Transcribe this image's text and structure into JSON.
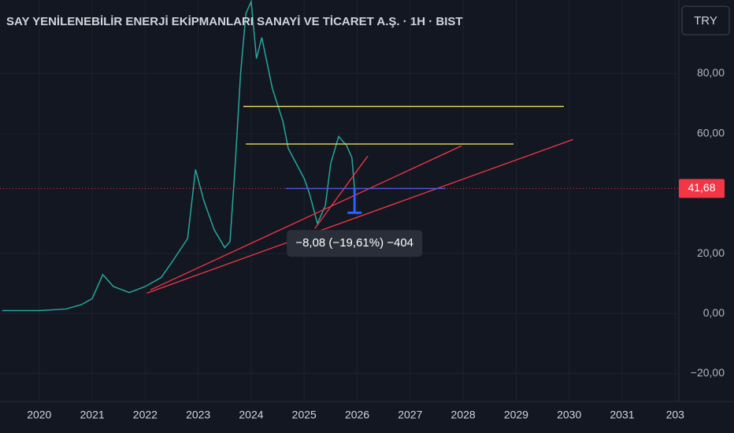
{
  "chart_data": {
    "type": "line",
    "title": "SAY YENİLENEBİLİR ENERJİ EKİPMANLARI SANAYİ VE TİCARET A.Ş. · 1H · BIST",
    "currency": "TRY",
    "color": "#26a69a",
    "x": [
      2019.3,
      2020,
      2020.5,
      2020.8,
      2021,
      2021.2,
      2021.4,
      2021.7,
      2022,
      2022.3,
      2022.5,
      2022.8,
      2022.95,
      2023.1,
      2023.3,
      2023.5,
      2023.6,
      2023.7,
      2023.8,
      2023.9,
      2024,
      2024.1,
      2024.2,
      2024.4,
      2024.6,
      2024.7,
      2024.85,
      2025,
      2025.1,
      2025.25,
      2025.4,
      2025.5,
      2025.65,
      2025.8,
      2025.9,
      2025.95
    ],
    "values": [
      1,
      1,
      1.5,
      3,
      5,
      13,
      9,
      7,
      9,
      12,
      17,
      25,
      48,
      38,
      28,
      22,
      24,
      50,
      80,
      100,
      104,
      85,
      92,
      75,
      64,
      55,
      50,
      45,
      40,
      30,
      36,
      50,
      59,
      56,
      52,
      41.68
    ],
    "xlim": [
      2019.26,
      2032.1
    ],
    "ylim": [
      -28,
      104.5
    ],
    "xticks": [
      2020,
      2021,
      2022,
      2023,
      2024,
      2025,
      2026,
      2027,
      2028,
      2029,
      2030,
      2031,
      {
        "value": 2032,
        "label": "203"
      }
    ],
    "yticks": [
      {
        "value": -20,
        "label": "−20,00"
      },
      {
        "value": 0,
        "label": "0,00"
      },
      {
        "value": 20,
        "label": "20,00"
      },
      {
        "value": 60,
        "label": "60,00"
      },
      {
        "value": 80,
        "label": "80,00"
      }
    ],
    "grid": true,
    "last_price": {
      "value": 41.68,
      "label": "41,68",
      "color": "#f23645"
    },
    "measure": {
      "value": -8.08,
      "from": 41.68,
      "x": 2025.95,
      "label": "−8,08 (−19,61%) −404",
      "color": "#2962ff"
    },
    "drawings": [
      {
        "color": "#e8dc5a",
        "x": [
          2023.85,
          2029.9
        ],
        "y": [
          69,
          69
        ]
      },
      {
        "color": "#e8dc5a",
        "x": [
          2023.9,
          2028.95
        ],
        "y": [
          56.5,
          56.5
        ]
      },
      {
        "color": "#f23645",
        "x": [
          2022.03,
          2030.07
        ],
        "y": [
          6.8,
          58
        ]
      },
      {
        "color": "#f23645",
        "x": [
          2022.1,
          2027.97
        ],
        "y": [
          7.9,
          55.9
        ]
      },
      {
        "color": "#f23645",
        "x": [
          2025.2,
          2026.2
        ],
        "y": [
          28.3,
          52.5
        ]
      },
      {
        "color": "#2962ff",
        "x": [
          2024.65,
          2027.67
        ],
        "y": [
          41.68,
          41.68
        ]
      }
    ]
  }
}
